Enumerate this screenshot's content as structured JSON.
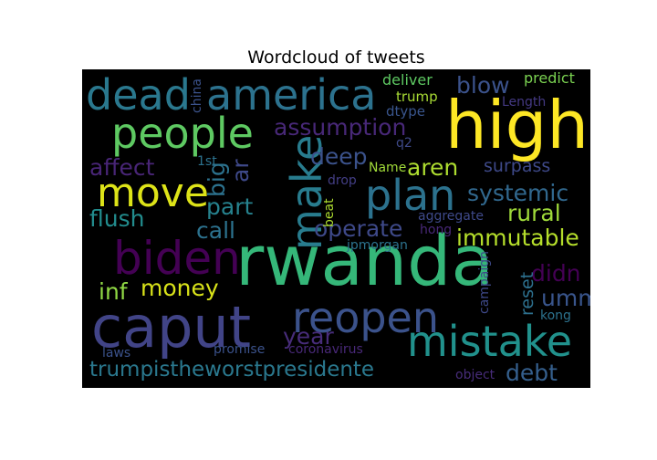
{
  "chart_data": {
    "type": "wordcloud",
    "title": "Wordcloud of tweets",
    "background": "#000000",
    "words": [
      {
        "text": "rwanda",
        "size": 5,
        "orientation": "horizontal",
        "color": "#35b779"
      },
      {
        "text": "high",
        "size": 5,
        "orientation": "horizontal",
        "color": "#fde725"
      },
      {
        "text": "caput",
        "size": 5,
        "orientation": "horizontal",
        "color": "#414487"
      },
      {
        "text": "biden",
        "size": 4,
        "orientation": "horizontal",
        "color": "#440154"
      },
      {
        "text": "america",
        "size": 4,
        "orientation": "horizontal",
        "color": "#2c728e"
      },
      {
        "text": "dead",
        "size": 4,
        "orientation": "horizontal",
        "color": "#2a788e"
      },
      {
        "text": "people",
        "size": 4,
        "orientation": "horizontal",
        "color": "#5ec962"
      },
      {
        "text": "mistake",
        "size": 4,
        "orientation": "horizontal",
        "color": "#21918c"
      },
      {
        "text": "reopen",
        "size": 4,
        "orientation": "horizontal",
        "color": "#3b528b"
      },
      {
        "text": "plan",
        "size": 4,
        "orientation": "horizontal",
        "color": "#2c728e"
      },
      {
        "text": "make",
        "size": 4,
        "orientation": "vertical",
        "color": "#287c8e"
      },
      {
        "text": "move",
        "size": 4,
        "orientation": "horizontal",
        "color": "#dde318"
      },
      {
        "text": "trumpistheworstpresidente",
        "size": 3,
        "orientation": "horizontal",
        "color": "#2a788e"
      },
      {
        "text": "assumption",
        "size": 3,
        "orientation": "horizontal",
        "color": "#482878"
      },
      {
        "text": "blow",
        "size": 3,
        "orientation": "horizontal",
        "color": "#3b528b"
      },
      {
        "text": "systemic",
        "size": 3,
        "orientation": "horizontal",
        "color": "#31688e"
      },
      {
        "text": "immutable",
        "size": 3,
        "orientation": "horizontal",
        "color": "#b5de2b"
      },
      {
        "text": "money",
        "size": 3,
        "orientation": "horizontal",
        "color": "#d8e219"
      },
      {
        "text": "aren",
        "size": 3,
        "orientation": "horizontal",
        "color": "#addc30"
      },
      {
        "text": "rural",
        "size": 3,
        "orientation": "horizontal",
        "color": "#9fda3a"
      },
      {
        "text": "operate",
        "size": 3,
        "orientation": "horizontal",
        "color": "#3e4989"
      },
      {
        "text": "part",
        "size": 3,
        "orientation": "horizontal",
        "color": "#26828e"
      },
      {
        "text": "call",
        "size": 3,
        "orientation": "horizontal",
        "color": "#2c728e"
      },
      {
        "text": "flush",
        "size": 3,
        "orientation": "horizontal",
        "color": "#228c8d"
      },
      {
        "text": "affect",
        "size": 3,
        "orientation": "horizontal",
        "color": "#482576"
      },
      {
        "text": "deep",
        "size": 3,
        "orientation": "horizontal",
        "color": "#3b528b"
      },
      {
        "text": "ar",
        "size": 3,
        "orientation": "vertical",
        "color": "#3e4989"
      },
      {
        "text": "big",
        "size": 3,
        "orientation": "vertical",
        "color": "#2c728e"
      },
      {
        "text": "umm",
        "size": 3,
        "orientation": "horizontal",
        "color": "#39558c"
      },
      {
        "text": "debt",
        "size": 3,
        "orientation": "horizontal",
        "color": "#355f8d"
      },
      {
        "text": "year",
        "size": 3,
        "orientation": "horizontal",
        "color": "#472c7a"
      },
      {
        "text": "didn",
        "size": 3,
        "orientation": "horizontal",
        "color": "#440154"
      },
      {
        "text": "inf",
        "size": 3,
        "orientation": "horizontal",
        "color": "#8fd744"
      },
      {
        "text": "surpass",
        "size": 2,
        "orientation": "horizontal",
        "color": "#3e4989"
      },
      {
        "text": "reset",
        "size": 2,
        "orientation": "vertical",
        "color": "#2d708e"
      },
      {
        "text": "predict",
        "size": 2,
        "orientation": "horizontal",
        "color": "#7ad151"
      },
      {
        "text": "deliver",
        "size": 2,
        "orientation": "horizontal",
        "color": "#5ec962"
      },
      {
        "text": "trump",
        "size": 2,
        "orientation": "horizontal",
        "color": "#a8db34"
      },
      {
        "text": "dtype",
        "size": 2,
        "orientation": "horizontal",
        "color": "#39558c"
      },
      {
        "text": "Length",
        "size": 2,
        "orientation": "horizontal",
        "color": "#443983"
      },
      {
        "text": "q2",
        "size": 2,
        "orientation": "horizontal",
        "color": "#3e4989"
      },
      {
        "text": "china",
        "size": 2,
        "orientation": "vertical",
        "color": "#3b528b"
      },
      {
        "text": "1st",
        "size": 2,
        "orientation": "horizontal",
        "color": "#2c728e"
      },
      {
        "text": "drop",
        "size": 2,
        "orientation": "horizontal",
        "color": "#433e85"
      },
      {
        "text": "Name",
        "size": 2,
        "orientation": "horizontal",
        "color": "#a0da39"
      },
      {
        "text": "beat",
        "size": 2,
        "orientation": "vertical",
        "color": "#addc30"
      },
      {
        "text": "aggregate",
        "size": 2,
        "orientation": "horizontal",
        "color": "#3e4989"
      },
      {
        "text": "hong",
        "size": 2,
        "orientation": "horizontal",
        "color": "#482878"
      },
      {
        "text": "jpmorgan",
        "size": 2,
        "orientation": "horizontal",
        "color": "#2c728e"
      },
      {
        "text": "campaign",
        "size": 2,
        "orientation": "vertical",
        "color": "#3e4989"
      },
      {
        "text": "kong",
        "size": 2,
        "orientation": "horizontal",
        "color": "#2c728e"
      },
      {
        "text": "promise",
        "size": 2,
        "orientation": "horizontal",
        "color": "#3b528b"
      },
      {
        "text": "coronavirus",
        "size": 2,
        "orientation": "horizontal",
        "color": "#482878"
      },
      {
        "text": "laws",
        "size": 2,
        "orientation": "horizontal",
        "color": "#3b528b"
      },
      {
        "text": "object",
        "size": 2,
        "orientation": "horizontal",
        "color": "#472c7a"
      }
    ]
  }
}
